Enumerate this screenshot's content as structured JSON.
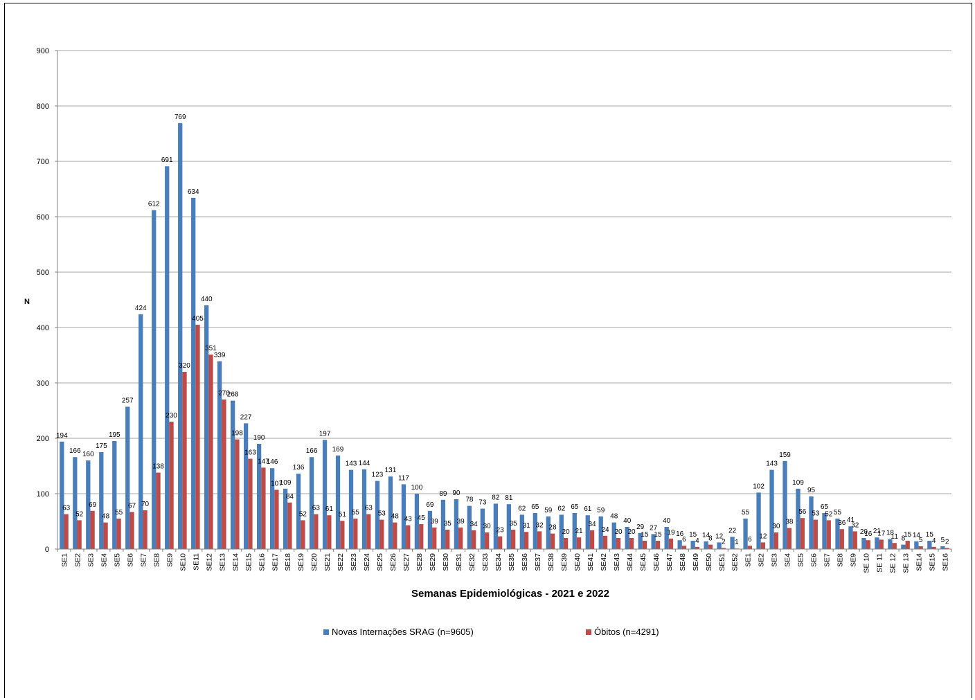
{
  "chart_data": {
    "type": "bar",
    "xlabel": "Semanas Epidemiológicas  - 2021 e 2022",
    "ylabel": "N",
    "ylim": [
      0,
      900
    ],
    "yticks": [
      0,
      100,
      200,
      300,
      400,
      500,
      600,
      700,
      800,
      900
    ],
    "grid": true,
    "legend_position": "bottom",
    "categories": [
      "SE1",
      "SE2",
      "SE3",
      "SE4",
      "SE5",
      "SE6",
      "SE7",
      "SE8",
      "SE9",
      "SE10",
      "SE11",
      "SE12",
      "SE13",
      "SE14",
      "SE15",
      "SE16",
      "SE17",
      "SE18",
      "SE19",
      "SE20",
      "SE21",
      "SE22",
      "SE23",
      "SE24",
      "SE25",
      "SE26",
      "SE27",
      "SE28",
      "SE29",
      "SE30",
      "SE31",
      "SE32",
      "SE33",
      "SE34",
      "SE35",
      "SE36",
      "SE37",
      "SE38",
      "SE39",
      "SE40",
      "SE41",
      "SE42",
      "SE43",
      "SE44",
      "SE45",
      "SE46",
      "SE47",
      "SE48",
      "SE49",
      "SE50",
      "SE51",
      "SE52",
      "SE1",
      "SE2",
      "SE3",
      "SE4",
      "SE5",
      "SE6",
      "SE7",
      "SE8",
      "SE9",
      "SE 10",
      "SE 11",
      "SE 12",
      "SE 13",
      "SE14",
      "SE15",
      "SE16"
    ],
    "series": [
      {
        "name": "Novas Internações SRAG (n=9605)",
        "color": "#4a7ebb",
        "values": [
          194,
          166,
          160,
          175,
          195,
          257,
          424,
          612,
          691,
          769,
          634,
          440,
          339,
          268,
          227,
          190,
          146,
          109,
          136,
          166,
          197,
          169,
          143,
          144,
          123,
          131,
          117,
          100,
          69,
          89,
          90,
          78,
          73,
          82,
          81,
          62,
          65,
          59,
          62,
          65,
          61,
          59,
          48,
          40,
          29,
          27,
          40,
          16,
          15,
          14,
          12,
          22,
          55,
          102,
          143,
          159,
          109,
          95,
          65,
          55,
          41,
          20,
          21,
          18,
          8,
          14,
          15,
          5
        ]
      },
      {
        "name": "Óbitos (n=4291)",
        "color": "#be4b48",
        "values": [
          63,
          52,
          69,
          48,
          55,
          67,
          70,
          138,
          230,
          320,
          405,
          351,
          270,
          198,
          163,
          147,
          107,
          84,
          52,
          63,
          61,
          51,
          55,
          63,
          53,
          48,
          43,
          45,
          39,
          35,
          39,
          34,
          30,
          23,
          35,
          31,
          32,
          28,
          20,
          21,
          34,
          24,
          20,
          20,
          15,
          15,
          19,
          6,
          4,
          8,
          2,
          1,
          6,
          12,
          30,
          38,
          56,
          53,
          52,
          36,
          32,
          16,
          17,
          11,
          15,
          5,
          4,
          2
        ]
      }
    ]
  }
}
